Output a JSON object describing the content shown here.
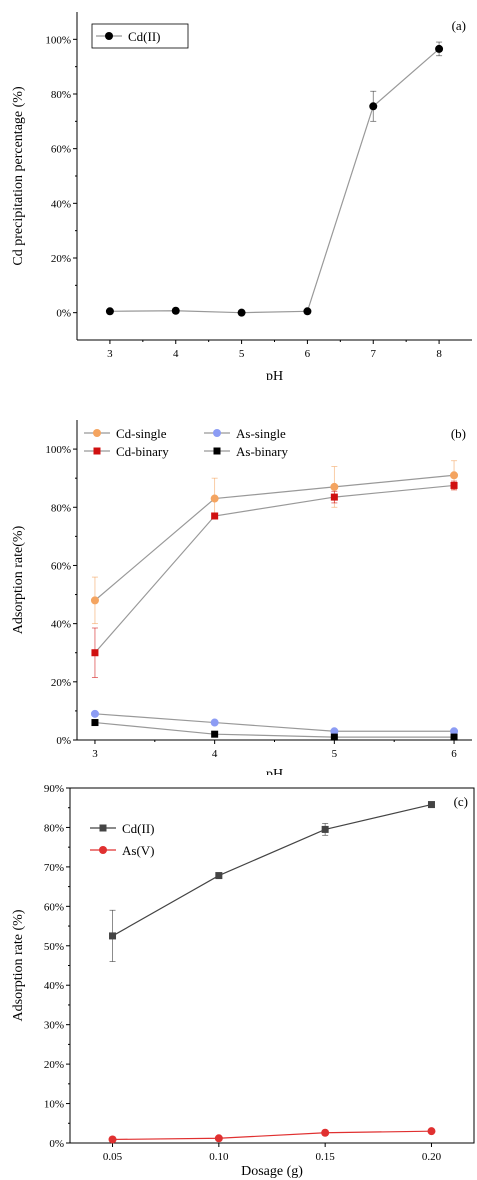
{
  "chart_data": [
    {
      "type": "line",
      "panel_label": "(a)",
      "xlabel": "pH",
      "ylabel": "Cd precipitation percentage (%)",
      "x": [
        3,
        4,
        5,
        6,
        7,
        8
      ],
      "xticks": [
        "3",
        "4",
        "5",
        "6",
        "7",
        "8"
      ],
      "xlim": [
        2.5,
        8.5
      ],
      "ylim": [
        -0.1,
        1.1
      ],
      "yticks": [
        0,
        0.2,
        0.4,
        0.6,
        0.8,
        1.0
      ],
      "ytick_labels": [
        "0%",
        "20%",
        "40%",
        "60%",
        "80%",
        "100%"
      ],
      "legend_position": "top-left",
      "series": [
        {
          "name": "Cd(II)",
          "color": "#000000",
          "line_color": "#999999",
          "marker": "circle",
          "values": [
            0.005,
            0.007,
            0.0,
            0.005,
            0.755,
            0.965
          ],
          "errors": [
            0,
            0,
            0,
            0,
            0.055,
            0.025
          ]
        }
      ]
    },
    {
      "type": "line",
      "panel_label": "(b)",
      "xlabel": "pH",
      "ylabel": "Adsorption rate(%)",
      "x": [
        3,
        4,
        5,
        6
      ],
      "xticks": [
        "3",
        "4",
        "5",
        "6"
      ],
      "xlim": [
        2.85,
        6.15
      ],
      "ylim": [
        0,
        1.1
      ],
      "yticks": [
        0,
        0.2,
        0.4,
        0.6,
        0.8,
        1.0
      ],
      "ytick_labels": [
        "0%",
        "20%",
        "40%",
        "60%",
        "80%",
        "100%"
      ],
      "legend_position": "top-left",
      "series": [
        {
          "name": "Cd-single",
          "color": "#f4a460",
          "line_color": "#999999",
          "marker": "circle",
          "values": [
            0.48,
            0.83,
            0.87,
            0.91
          ],
          "errors": [
            0.08,
            0.07,
            0.07,
            0.05
          ]
        },
        {
          "name": "As-single",
          "color": "#8c9cf4",
          "line_color": "#999999",
          "marker": "circle",
          "values": [
            0.09,
            0.06,
            0.03,
            0.03
          ],
          "errors": [
            0,
            0,
            0,
            0
          ]
        },
        {
          "name": "Cd-binary",
          "color": "#d01010",
          "line_color": "#999999",
          "marker": "square",
          "values": [
            0.3,
            0.77,
            0.835,
            0.875
          ],
          "errors": [
            0.085,
            0,
            0.02,
            0.015
          ]
        },
        {
          "name": "As-binary",
          "color": "#000000",
          "line_color": "#999999",
          "marker": "square",
          "values": [
            0.06,
            0.02,
            0.01,
            0.01
          ],
          "errors": [
            0,
            0,
            0,
            0
          ]
        }
      ]
    },
    {
      "type": "line",
      "panel_label": "(c)",
      "xlabel": "Dosage (g)",
      "ylabel": "Adsorption rate (%)",
      "x": [
        0.05,
        0.1,
        0.15,
        0.2
      ],
      "xticks": [
        "0.05",
        "0.10",
        "0.15",
        "0.20"
      ],
      "xlim": [
        0.03,
        0.22
      ],
      "ylim": [
        0,
        0.9
      ],
      "yticks": [
        0,
        0.1,
        0.2,
        0.3,
        0.4,
        0.5,
        0.6,
        0.7,
        0.8,
        0.9
      ],
      "ytick_labels": [
        "0%",
        "10%",
        "20%",
        "30%",
        "40%",
        "50%",
        "60%",
        "70%",
        "80%",
        "90%"
      ],
      "legend_position": "top-left",
      "series": [
        {
          "name": "Cd(II)",
          "color": "#444444",
          "line_color": "#444444",
          "marker": "square",
          "values": [
            0.525,
            0.678,
            0.795,
            0.858
          ],
          "errors": [
            0.065,
            0,
            0.015,
            0
          ]
        },
        {
          "name": "As(V)",
          "color": "#e03030",
          "line_color": "#e03030",
          "marker": "circle",
          "values": [
            0.009,
            0.012,
            0.026,
            0.03
          ],
          "errors": [
            0,
            0,
            0,
            0
          ]
        }
      ]
    }
  ]
}
